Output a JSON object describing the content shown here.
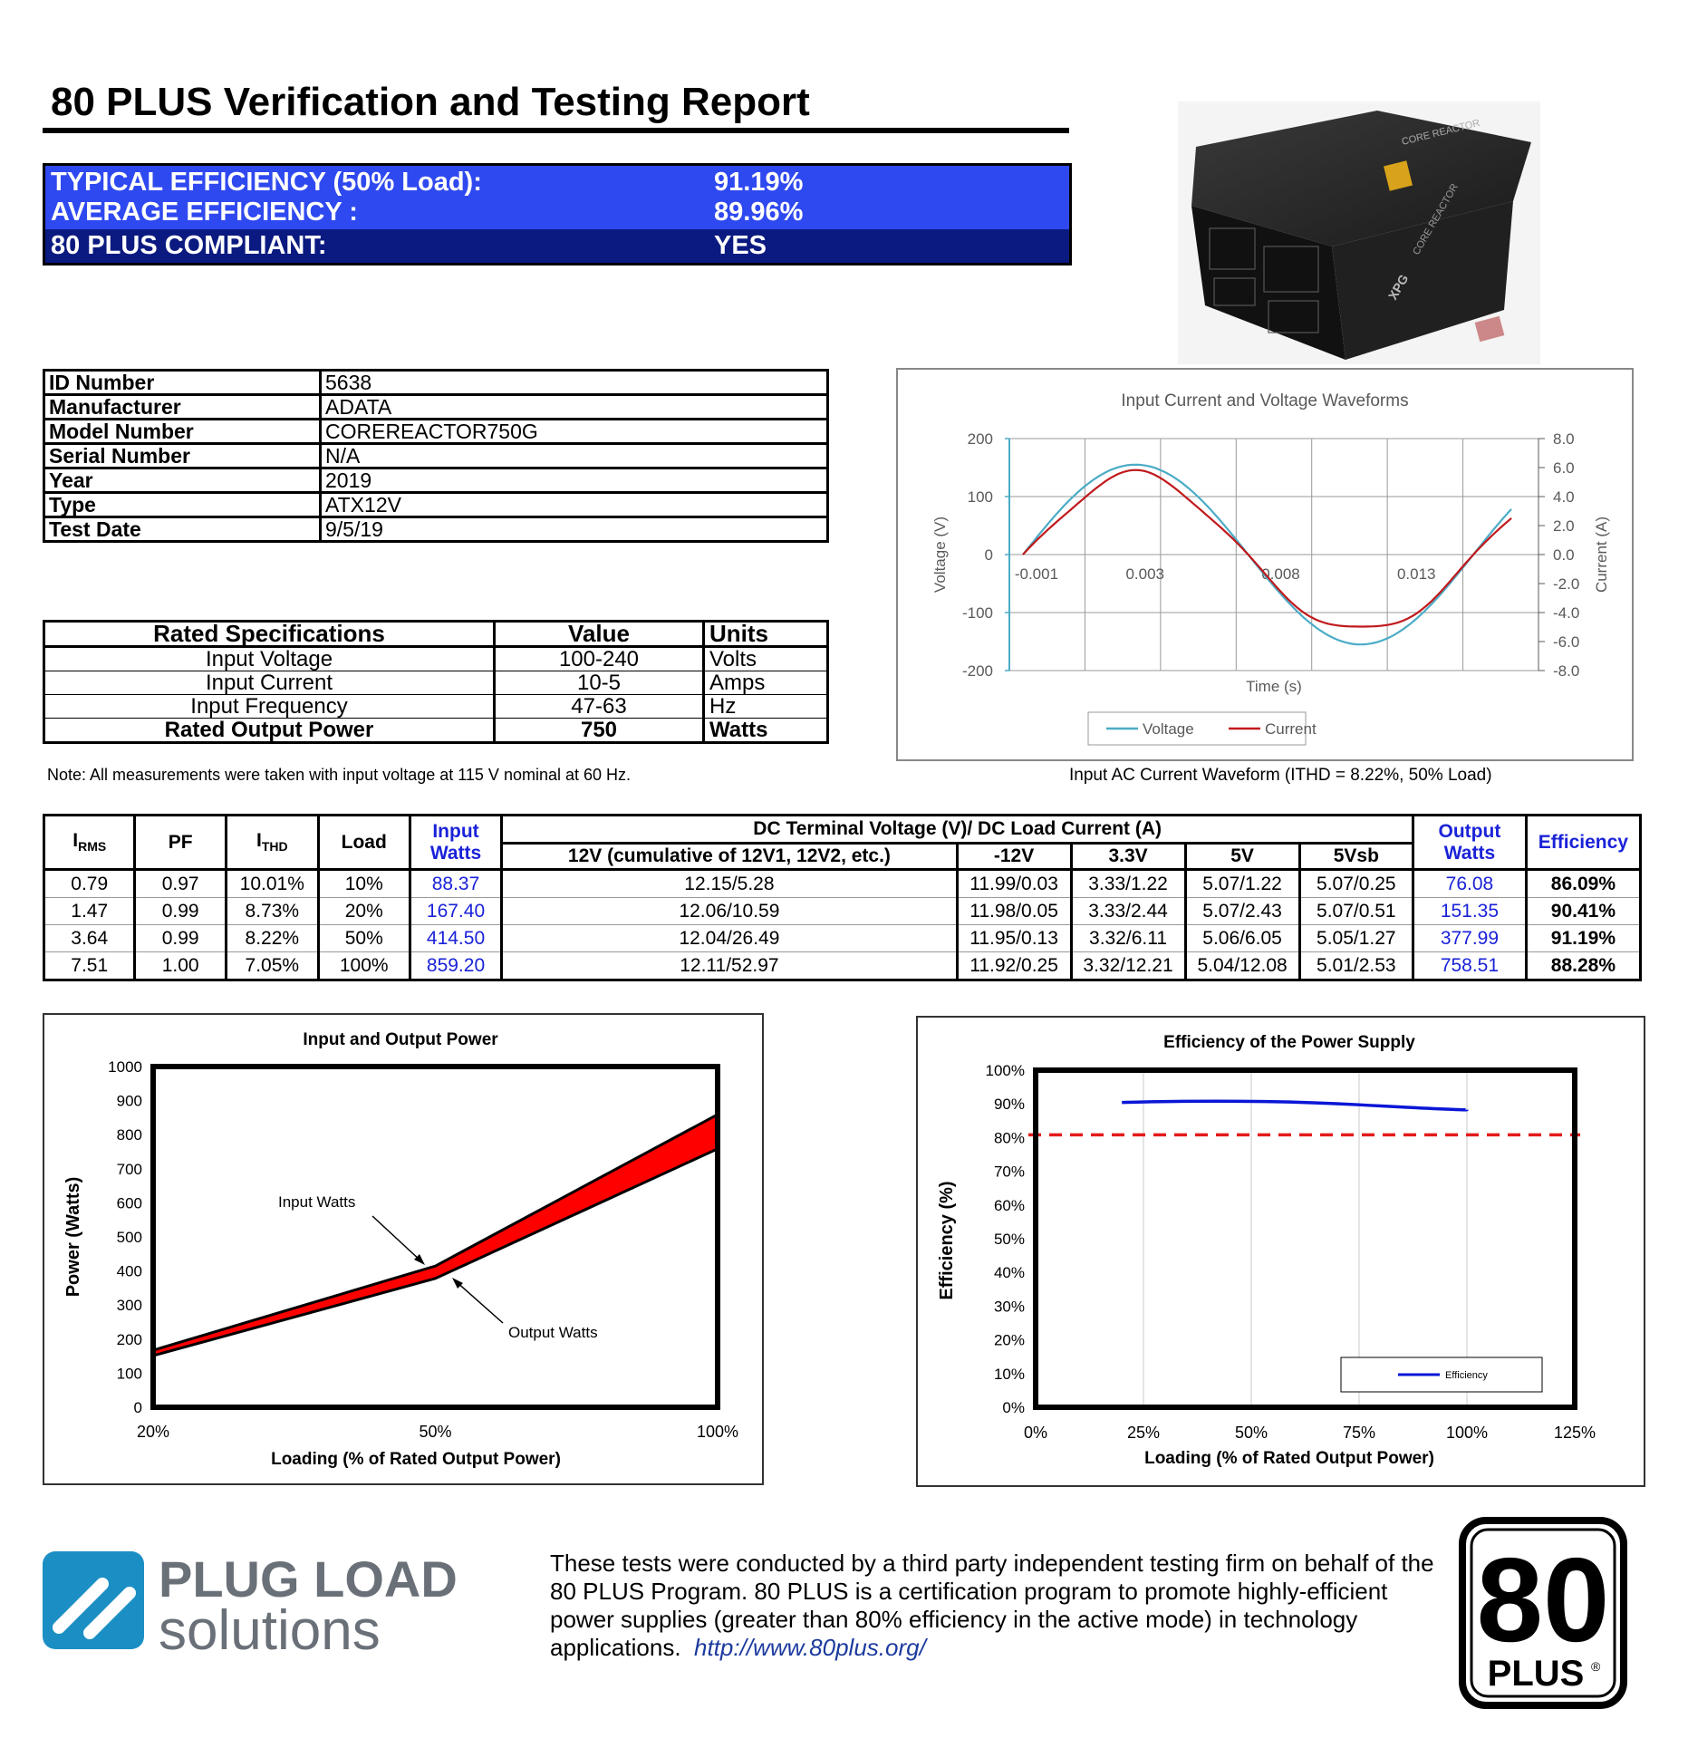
{
  "header": {
    "title": "80 PLUS Verification and Testing Report"
  },
  "summary": {
    "rows": [
      {
        "label": "TYPICAL EFFICIENCY (50% Load):",
        "value": "91.19%"
      },
      {
        "label": "AVERAGE EFFICIENCY :",
        "value": "89.96%"
      },
      {
        "label": "80 PLUS COMPLIANT:",
        "value": "YES"
      }
    ],
    "colors": {
      "bright": "#2f49f0",
      "dark": "#0b1a80"
    }
  },
  "info": {
    "rows": [
      {
        "key": "ID Number",
        "value": "5638"
      },
      {
        "key": "Manufacturer",
        "value": "ADATA"
      },
      {
        "key": "Model Number",
        "value": "COREREACTOR750G"
      },
      {
        "key": "Serial Number",
        "value": "N/A"
      },
      {
        "key": "Year",
        "value": "2019"
      },
      {
        "key": "Type",
        "value": "ATX12V"
      },
      {
        "key": "Test Date",
        "value": "9/5/19"
      }
    ]
  },
  "specs": {
    "headers": [
      "Rated Specifications",
      "Value",
      "Units"
    ],
    "rows": [
      {
        "name": "Input Voltage",
        "value": "100-240",
        "units": "Volts"
      },
      {
        "name": "Input Current",
        "value": "10-5",
        "units": "Amps"
      },
      {
        "name": "Input Frequency",
        "value": "47-63",
        "units": "Hz"
      },
      {
        "name": "Rated Output Power",
        "value": "750",
        "units": "Watts"
      }
    ],
    "note": "Note: All measurements were taken with input voltage at 115 V nominal at 60 Hz."
  },
  "photo": {
    "label_top": "CORE REACTOR",
    "label_side": "CORE REACTOR",
    "brand": "XPG"
  },
  "waveform": {
    "caption": "Input AC Current Waveform (ITHD = 8.22%, 50% Load)"
  },
  "data_table": {
    "headers": {
      "irms_main": "I",
      "irms_sub": "RMS",
      "pf": "PF",
      "ithd_main": "I",
      "ithd_sub": "THD",
      "load": "Load",
      "input_watts_1": "Input",
      "input_watts_2": "Watts",
      "dc_group": "DC Terminal Voltage (V)/ DC Load Current (A)",
      "v12": "12V (cumulative of 12V1, 12V2, etc.)",
      "vneg12": "-12V",
      "v33": "3.3V",
      "v5": "5V",
      "v5sb": "5Vsb",
      "output_watts_1": "Output",
      "output_watts_2": "Watts",
      "efficiency": "Efficiency"
    },
    "rows": [
      {
        "irms": "0.79",
        "pf": "0.97",
        "ithd": "10.01%",
        "load": "10%",
        "input": "88.37",
        "v12": "12.15/5.28",
        "vneg12": "11.99/0.03",
        "v33": "3.33/1.22",
        "v5": "5.07/1.22",
        "v5sb": "5.07/0.25",
        "output": "76.08",
        "eff": "86.09%"
      },
      {
        "irms": "1.47",
        "pf": "0.99",
        "ithd": "8.73%",
        "load": "20%",
        "input": "167.40",
        "v12": "12.06/10.59",
        "vneg12": "11.98/0.05",
        "v33": "3.33/2.44",
        "v5": "5.07/2.43",
        "v5sb": "5.07/0.51",
        "output": "151.35",
        "eff": "90.41%"
      },
      {
        "irms": "3.64",
        "pf": "0.99",
        "ithd": "8.22%",
        "load": "50%",
        "input": "414.50",
        "v12": "12.04/26.49",
        "vneg12": "11.95/0.13",
        "v33": "3.32/6.11",
        "v5": "5.06/6.05",
        "v5sb": "5.05/1.27",
        "output": "377.99",
        "eff": "91.19%"
      },
      {
        "irms": "7.51",
        "pf": "1.00",
        "ithd": "7.05%",
        "load": "100%",
        "input": "859.20",
        "v12": "12.11/52.97",
        "vneg12": "11.92/0.25",
        "v33": "3.32/12.21",
        "v5": "5.04/12.08",
        "v5sb": "5.01/2.53",
        "output": "758.51",
        "eff": "88.28%"
      }
    ]
  },
  "chart_data": [
    {
      "type": "line",
      "title": "Input Current and Voltage Waveforms",
      "xlabel": "Time (s)",
      "ylabel": "Voltage (V)",
      "y2label": "Current (A)",
      "xlim": [
        -0.002,
        0.0175
      ],
      "x_ticks": [
        "-0.001",
        "0.003",
        "0.008",
        "0.013"
      ],
      "x_tick_values": [
        -0.001,
        0.003,
        0.008,
        0.013
      ],
      "ylim": [
        -200,
        200
      ],
      "y_ticks": [
        "200",
        "100",
        "0",
        "-100",
        "-200"
      ],
      "y_tick_values": [
        200,
        100,
        0,
        -100,
        -200
      ],
      "y2lim": [
        -8,
        8
      ],
      "y2_ticks": [
        "8.0",
        "6.0",
        "4.0",
        "2.0",
        "0.0",
        "-2.0",
        "-4.0",
        "-6.0",
        "-8.0"
      ],
      "y2_tick_values": [
        8,
        6,
        4,
        2,
        0,
        -2,
        -4,
        -6,
        -8
      ],
      "grid": true,
      "legend_position": "bottom",
      "series": [
        {
          "name": "Voltage",
          "axis": "left",
          "color": "#4bacc6",
          "amplitude": 155,
          "phase_start": -0.0015,
          "period": 0.0166,
          "start": -0.0015,
          "end": 0.0165
        },
        {
          "name": "Current",
          "axis": "right",
          "color": "#c0191c",
          "amplitude": 5.4,
          "phase_start": -0.0015,
          "period": 0.0166,
          "start": -0.0015,
          "end": 0.0165
        }
      ]
    },
    {
      "type": "area",
      "title": "Input and Output Power",
      "xlabel": "Loading (% of Rated Output Power)",
      "ylabel": "Power (Watts)",
      "categories": [
        "20%",
        "50%",
        "100%"
      ],
      "ylim": [
        0,
        1000
      ],
      "y_ticks": [
        "1000",
        "900",
        "800",
        "700",
        "600",
        "500",
        "400",
        "300",
        "200",
        "100",
        "0"
      ],
      "y_tick_values": [
        1000,
        900,
        800,
        700,
        600,
        500,
        400,
        300,
        200,
        100,
        0
      ],
      "series": [
        {
          "name": "Input Watts",
          "values": [
            167.4,
            414.5,
            859.2
          ]
        },
        {
          "name": "Output Watts",
          "values": [
            151.35,
            377.99,
            758.51
          ]
        }
      ],
      "annotations": [
        "Input Watts",
        "Output Watts"
      ],
      "fill_color": "#ff0000"
    },
    {
      "type": "line",
      "title": "Efficiency of the Power Supply",
      "xlabel": "Loading (% of Rated Output Power)",
      "ylabel": "Efficiency (%)",
      "xlim": [
        0,
        125
      ],
      "x_ticks": [
        "0%",
        "25%",
        "50%",
        "75%",
        "100%",
        "125%"
      ],
      "x_tick_values": [
        0,
        25,
        50,
        75,
        100,
        125
      ],
      "ylim": [
        0,
        100
      ],
      "y_ticks": [
        "100%",
        "90%",
        "80%",
        "70%",
        "60%",
        "50%",
        "40%",
        "30%",
        "20%",
        "10%",
        "0%"
      ],
      "y_tick_values": [
        100,
        90,
        80,
        70,
        60,
        50,
        40,
        30,
        20,
        10,
        0
      ],
      "series": [
        {
          "name": "Efficiency",
          "color": "#0a16d6",
          "x": [
            20,
            50,
            100
          ],
          "values": [
            90.41,
            91.19,
            88.28
          ]
        }
      ],
      "threshold": {
        "value": 80,
        "color": "#e31b1b"
      },
      "legend_position": "bottom-right"
    }
  ],
  "footer": {
    "text": "These tests were conducted by a third party independent testing firm on behalf of the 80 PLUS Program. 80 PLUS is a certification program to promote highly-efficient power supplies (greater than 80% efficiency in the active mode) in technology applications.",
    "link": "http://www.80plus.org/",
    "logo_line1": "PLUG LOAD",
    "logo_line2": "solutions",
    "badge_number": "80",
    "badge_word": "PLUS",
    "badge_reg": "®"
  }
}
